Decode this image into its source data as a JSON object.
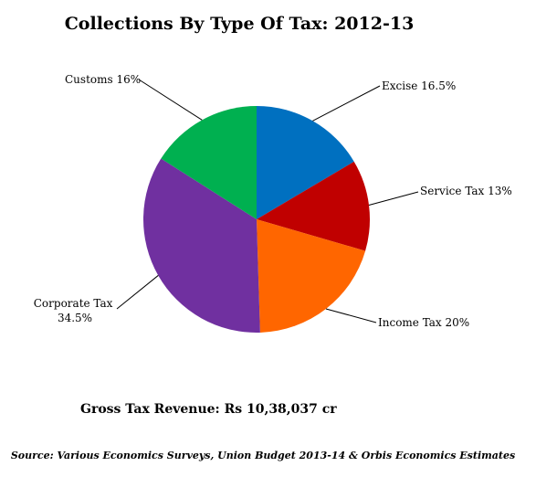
{
  "chart_data": {
    "type": "pie",
    "title": "Collections By Type Of Tax: 2012-13",
    "slices": [
      {
        "label": "Excise 16.5%",
        "value": 16.5,
        "color": "#0070C0"
      },
      {
        "label": "Service Tax 13%",
        "value": 13,
        "color": "#C00000"
      },
      {
        "label": "Income Tax 20%",
        "value": 20,
        "color": "#FF6600"
      },
      {
        "label": "Corporate Tax 34.5%",
        "label_lines": [
          "Corporate Tax",
          "34.5%"
        ],
        "value": 34.5,
        "color": "#7030A0"
      },
      {
        "label": "Customs 16%",
        "value": 16,
        "color": "#00B050"
      }
    ],
    "total_text": "Gross Tax Revenue:  Rs 10,38,037  cr",
    "source": "Source: Various Economics Surveys, Union Budget 2013-14 & Orbis Economics Estimates"
  }
}
